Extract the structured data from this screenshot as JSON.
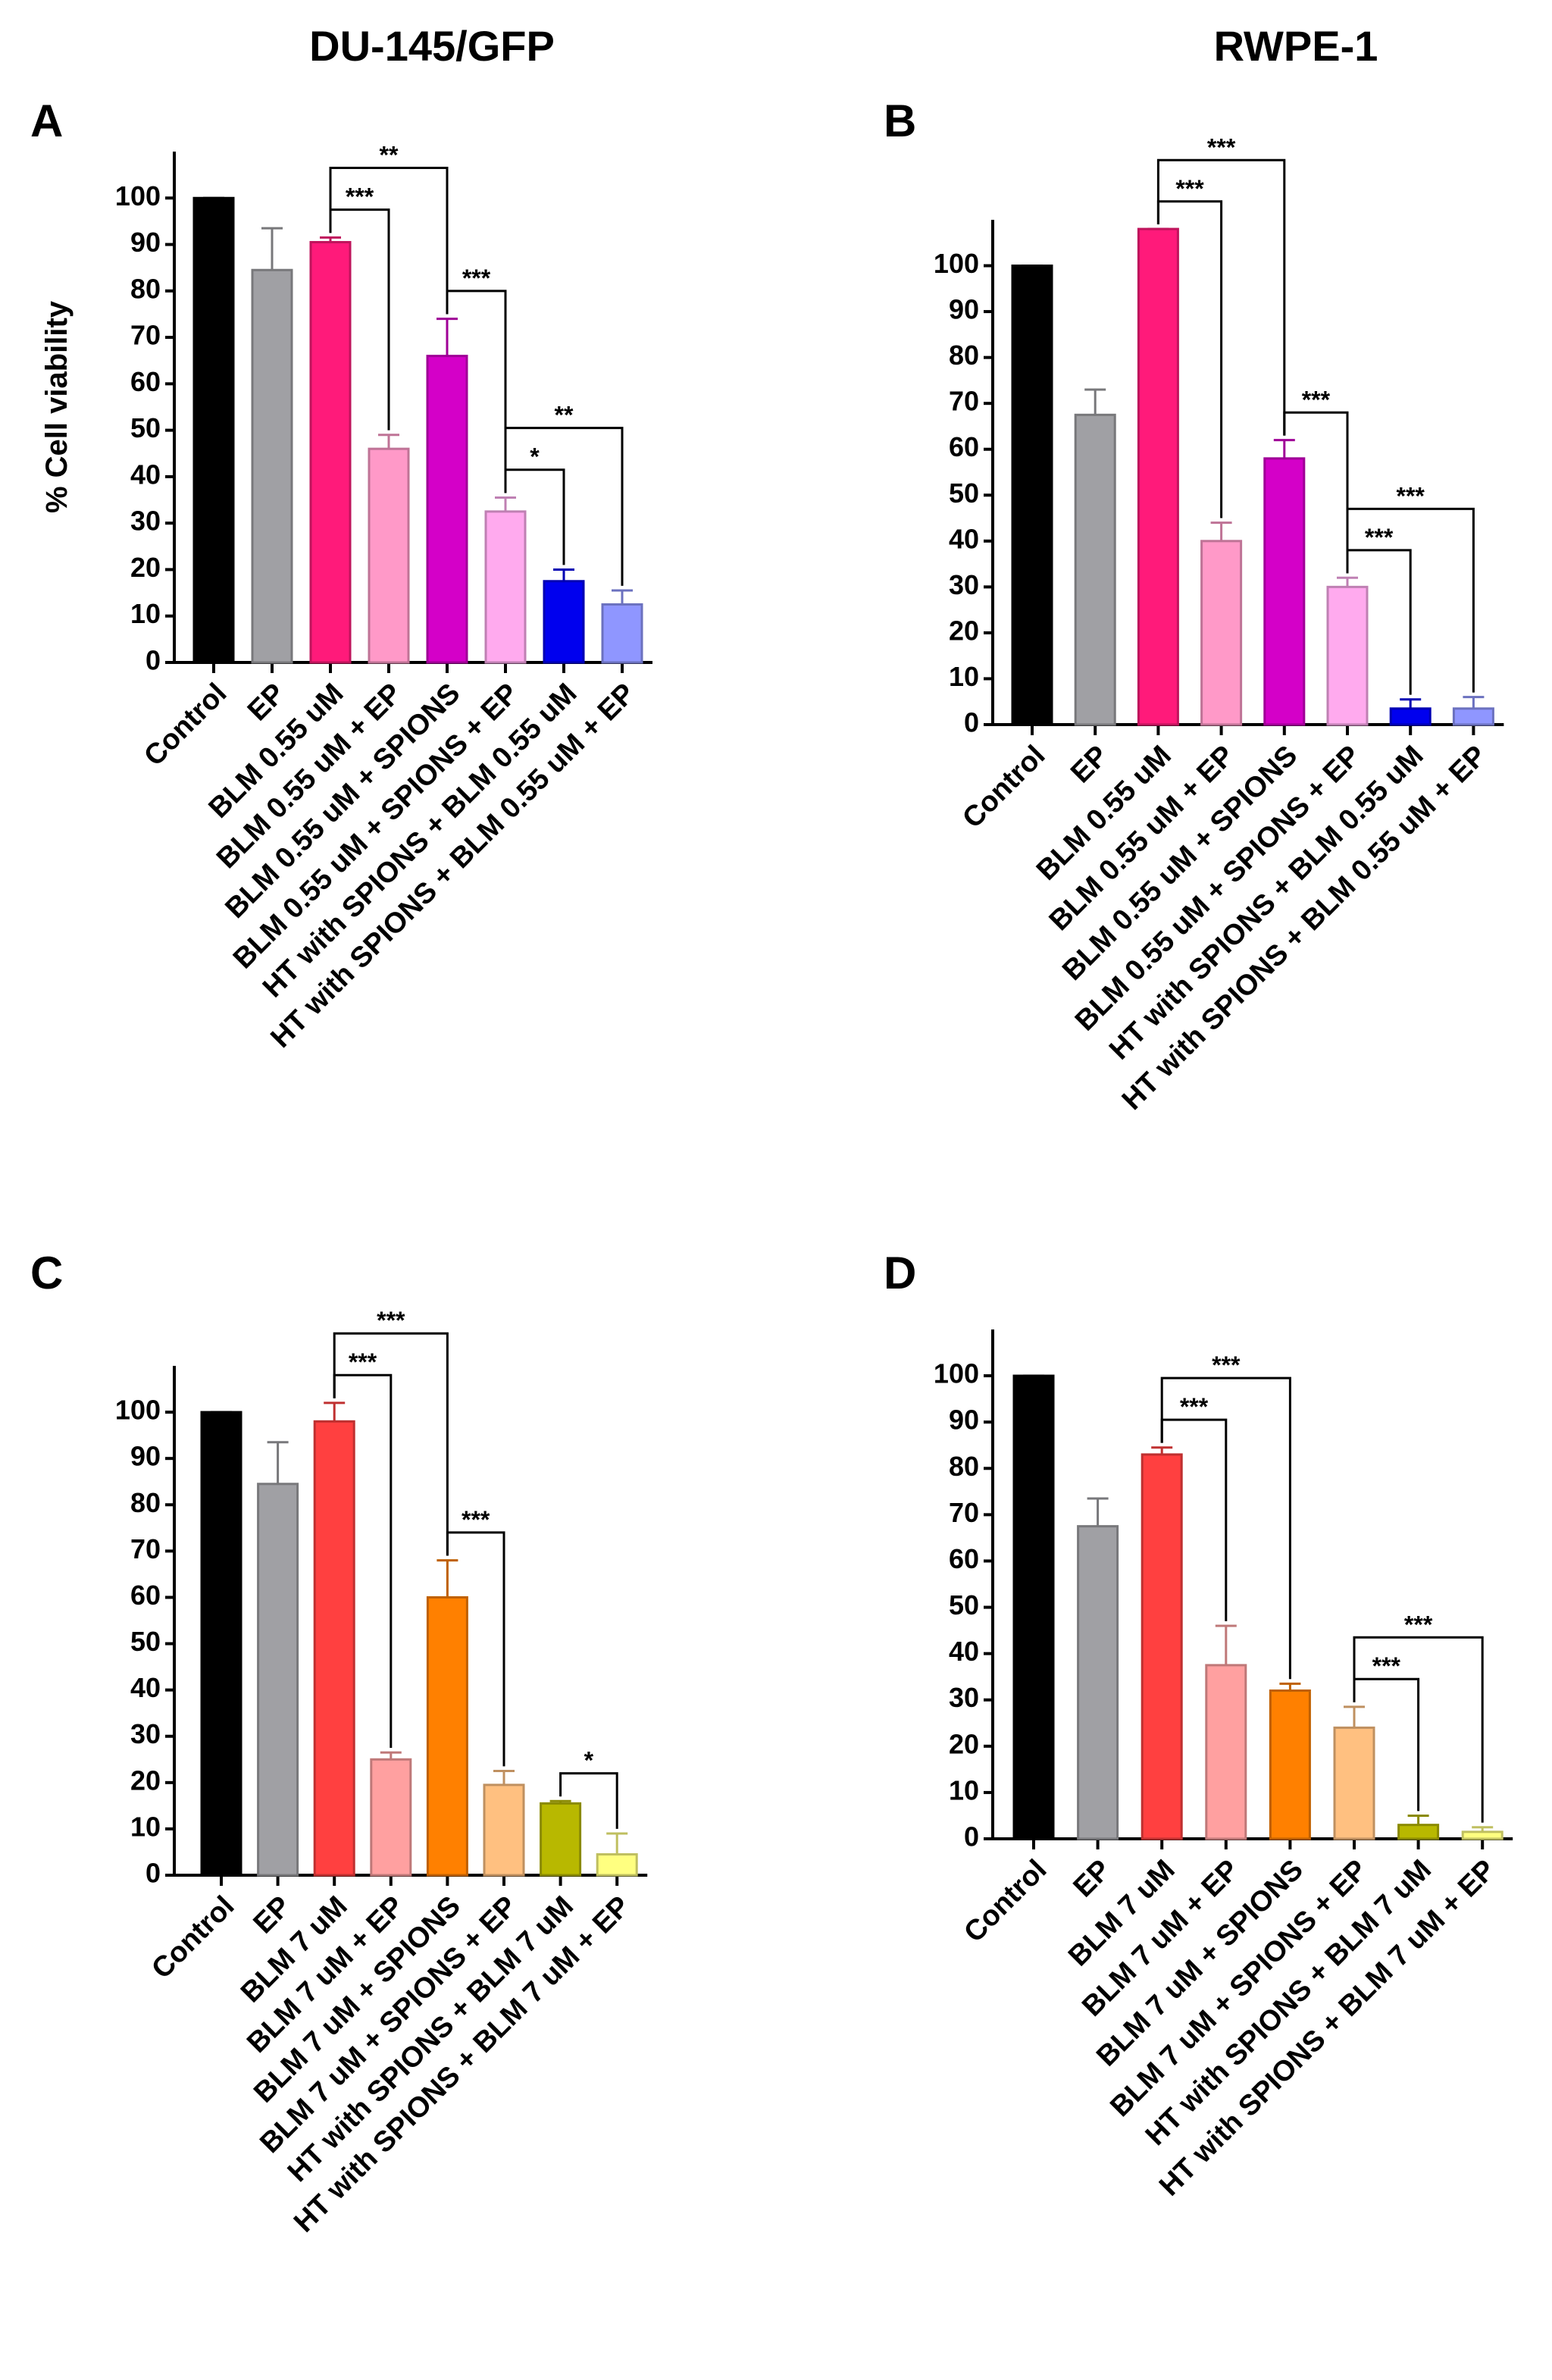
{
  "column_titles": [
    "DU-145/GFP",
    "RWPE-1"
  ],
  "chart_data": [
    {
      "type": "bar",
      "panel": "A",
      "ylabel": "% Cell viability",
      "categories": [
        "Control",
        "EP",
        "BLM 0.55 uM",
        "BLM 0.55 uM + EP",
        "BLM 0.55 uM + SPIONS",
        "BLM 0.55 uM + SPIONS + EP",
        "HT with SPIONS + BLM 0.55 uM",
        "HT with SPIONS + BLM 0.55 uM + EP"
      ],
      "values": [
        100,
        84.5,
        90.5,
        46,
        66,
        32.5,
        17.5,
        12.5
      ],
      "errors": [
        0,
        9,
        1,
        3,
        8,
        3,
        2.5,
        3
      ],
      "colors": [
        "#000000",
        "#a0a0a4",
        "#ff1a7a",
        "#ff99c8",
        "#d400c8",
        "#ffaaee",
        "#0000ee",
        "#8f96ff"
      ],
      "ylim": [
        0,
        110
      ],
      "yticks": [
        0,
        10,
        20,
        30,
        40,
        50,
        60,
        70,
        80,
        90,
        100
      ],
      "brackets": [
        {
          "from": 2,
          "to": 3,
          "label": "***"
        },
        {
          "from": 2,
          "to": 4,
          "label": "**"
        },
        {
          "from": 4,
          "to": 5,
          "label": "***"
        },
        {
          "from": 5,
          "to": 6,
          "label": "*"
        },
        {
          "from": 5,
          "to": 7,
          "label": "**"
        }
      ]
    },
    {
      "type": "bar",
      "panel": "B",
      "categories": [
        "Control",
        "EP",
        "BLM 0.55 uM",
        "BLM 0.55 uM + EP",
        "BLM 0.55 uM + SPIONS",
        "BLM 0.55 uM + SPIONS + EP",
        "HT with SPIONS + BLM 0.55 uM",
        "HT with SPIONS + BLM 0.55 uM + EP"
      ],
      "values": [
        100,
        67.5,
        108,
        40,
        58,
        30,
        3.5,
        3.5
      ],
      "errors": [
        0,
        5.5,
        0,
        4,
        4,
        2,
        2,
        2.5
      ],
      "colors": [
        "#000000",
        "#a0a0a4",
        "#ff1a7a",
        "#ff99c8",
        "#d400c8",
        "#ffaaee",
        "#0000ee",
        "#8f96ff"
      ],
      "ylim": [
        0,
        110
      ],
      "yticks": [
        0,
        10,
        20,
        30,
        40,
        50,
        60,
        70,
        80,
        90,
        100
      ],
      "brackets": [
        {
          "from": 2,
          "to": 3,
          "label": "***"
        },
        {
          "from": 2,
          "to": 4,
          "label": "***"
        },
        {
          "from": 4,
          "to": 5,
          "label": "***"
        },
        {
          "from": 5,
          "to": 6,
          "label": "***"
        },
        {
          "from": 5,
          "to": 7,
          "label": "***"
        }
      ]
    },
    {
      "type": "bar",
      "panel": "C",
      "categories": [
        "Control",
        "EP",
        "BLM 7 uM",
        "BLM 7 uM + EP",
        "BLM 7 uM + SPIONS",
        "BLM 7 uM + SPIONS + EP",
        "HT with SPIONS + BLM 7 uM",
        "HT with SPIONS + BLM 7 uM + EP"
      ],
      "values": [
        100,
        84.5,
        98,
        25,
        60,
        19.5,
        15.5,
        4.5
      ],
      "errors": [
        0,
        9,
        4,
        1.5,
        8,
        3,
        0.5,
        4.5
      ],
      "colors": [
        "#000000",
        "#a0a0a4",
        "#ff4040",
        "#ffa0a0",
        "#ff8000",
        "#ffc080",
        "#b8b800",
        "#ffff80"
      ],
      "ylim": [
        0,
        110
      ],
      "yticks": [
        0,
        10,
        20,
        30,
        40,
        50,
        60,
        70,
        80,
        90,
        100
      ],
      "brackets": [
        {
          "from": 2,
          "to": 3,
          "label": "***"
        },
        {
          "from": 2,
          "to": 4,
          "label": "***"
        },
        {
          "from": 4,
          "to": 5,
          "label": "***"
        },
        {
          "from": 6,
          "to": 7,
          "label": "*"
        }
      ]
    },
    {
      "type": "bar",
      "panel": "D",
      "categories": [
        "Control",
        "EP",
        "BLM 7 uM",
        "BLM 7 uM + EP",
        "BLM 7 uM + SPIONS",
        "BLM 7 uM + SPIONS + EP",
        "HT with SPIONS + BLM 7 uM",
        "HT with SPIONS + BLM 7 uM + EP"
      ],
      "values": [
        100,
        67.5,
        83,
        37.5,
        32,
        24,
        3,
        1.5
      ],
      "errors": [
        0,
        6,
        1.5,
        8.5,
        1.5,
        4.5,
        2,
        1
      ],
      "colors": [
        "#000000",
        "#a0a0a4",
        "#ff4040",
        "#ffa0a0",
        "#ff8000",
        "#ffc080",
        "#b8b800",
        "#ffff80"
      ],
      "ylim": [
        0,
        110
      ],
      "yticks": [
        0,
        10,
        20,
        30,
        40,
        50,
        60,
        70,
        80,
        90,
        100
      ],
      "brackets": [
        {
          "from": 2,
          "to": 3,
          "label": "***"
        },
        {
          "from": 2,
          "to": 4,
          "label": "***"
        },
        {
          "from": 5,
          "to": 6,
          "label": "***"
        },
        {
          "from": 5,
          "to": 7,
          "label": "***"
        }
      ]
    }
  ]
}
